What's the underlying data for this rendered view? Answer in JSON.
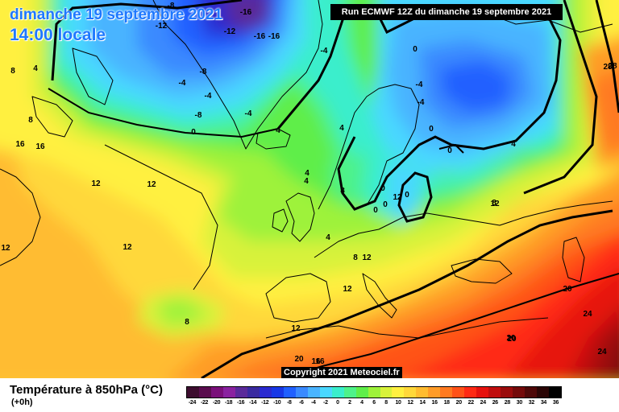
{
  "header": {
    "date": "dimanche 19 septembre 2021",
    "time": "14:00 locale",
    "run": "Run ECMWF 12Z du dimanche 19 septembre 2021"
  },
  "footer": {
    "variable": "Température à 850hPa (°C)",
    "lead": "(+0h)",
    "copyright": "Copyright 2021 Meteociel.fr"
  },
  "legend": {
    "colors": [
      "#3d0d2f",
      "#5a0c4e",
      "#7a0f7a",
      "#8a22a0",
      "#5a2a9a",
      "#3a2aa0",
      "#2a2ad0",
      "#1838e6",
      "#2060ff",
      "#3a8aff",
      "#4ab4ff",
      "#4ad8ff",
      "#3aeecc",
      "#4ef28a",
      "#5fee4a",
      "#9ef23a",
      "#d8f23a",
      "#fff040",
      "#ffd83a",
      "#ffbc30",
      "#ff9c28",
      "#ff7a20",
      "#ff5218",
      "#ff2a14",
      "#e6120e",
      "#c00e0e",
      "#9a0c0c",
      "#740a0a",
      "#4e0808",
      "#2a0505",
      "#000000"
    ],
    "labels": [
      "-24",
      "-22",
      "-20",
      "-18",
      "-16",
      "-14",
      "-12",
      "-10",
      "-8",
      "-6",
      "-4",
      "-2",
      "0",
      "2",
      "4",
      "6",
      "8",
      "10",
      "12",
      "14",
      "16",
      "18",
      "20",
      "22",
      "24",
      "26",
      "28",
      "30",
      "32",
      "34",
      "36"
    ]
  },
  "contour_labels": [
    "-16",
    "-16",
    "-12",
    "-12",
    "-16",
    "-8",
    "-8",
    "-4",
    "-4",
    "-4",
    "-4",
    "-8",
    "-4",
    "-4",
    "0",
    "0",
    "0",
    "0",
    "0",
    "0",
    "0",
    "0",
    "4",
    "4",
    "4",
    "4",
    "4",
    "4",
    "4",
    "8",
    "8",
    "8",
    "8",
    "8",
    "8",
    "12",
    "12",
    "12",
    "12",
    "12",
    "12",
    "12",
    "12",
    "12",
    "16",
    "16",
    "16",
    "16",
    "20",
    "20",
    "20",
    "20",
    "24",
    "24",
    "28",
    "28"
  ]
}
